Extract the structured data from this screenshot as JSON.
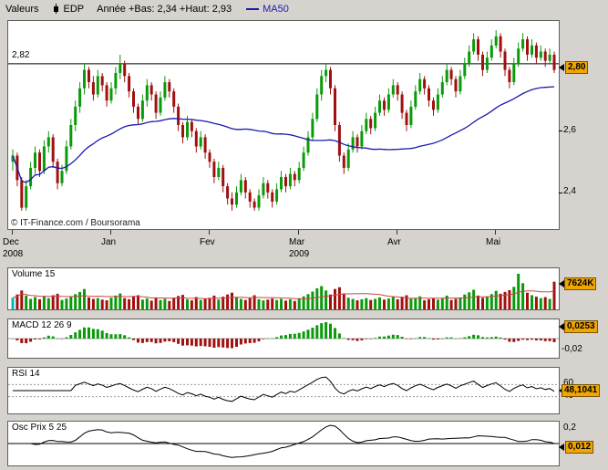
{
  "toolbar": {
    "values_label": "Valeurs",
    "symbol": "EDP",
    "range_label": "Année +Bas: 2,34 +Haut: 2,93",
    "ma_label": "MA50"
  },
  "main": {
    "ref_label": "2,82",
    "copyright": "© IT-Finance.com / Boursorama",
    "scale_26": "2,6",
    "scale_24": "2,4",
    "badge": "2,80"
  },
  "panels": {
    "volume": {
      "label": "Volume 15",
      "badge": "7624K"
    },
    "macd": {
      "label": "MACD 12 26 9",
      "badge": "0,0253",
      "axis_low": "-0,02"
    },
    "rsi": {
      "label": "RSI 14",
      "badge": "48,1041",
      "grid_hi": "60",
      "grid_lo": "40"
    },
    "osc": {
      "label": "Osc Prix 5 25",
      "badge": "0,012",
      "axis_hi": "0,2"
    }
  },
  "chart_data": {
    "type": "candlestick",
    "title": "EDP",
    "x_months": [
      "Dec",
      "Jan",
      "Fev",
      "Mar",
      "Avr",
      "Mai"
    ],
    "month_start_indices": [
      0,
      22,
      44,
      64,
      86,
      108
    ],
    "years": [
      {
        "label": "2008",
        "index": 0
      },
      {
        "label": "2009",
        "index": 64
      }
    ],
    "price_range": [
      2.28,
      2.96
    ],
    "price_ticks": [
      2.6,
      2.4
    ],
    "reference_line": 2.82,
    "last_price": 2.8,
    "year_low": 2.34,
    "year_high": 2.93,
    "overlays": [
      {
        "name": "MA50",
        "type": "sma",
        "period": 50
      }
    ],
    "indicators": {
      "volume": {
        "ma_period": 15,
        "last_label": "7624K"
      },
      "macd": {
        "fast": 12,
        "slow": 26,
        "signal": 9,
        "last": 0.0253,
        "axis_min": -0.02
      },
      "rsi": {
        "period": 14,
        "last": 48.1041,
        "gridlines": [
          60,
          40
        ]
      },
      "osc": {
        "fast": 5,
        "slow": 25,
        "last": 0.012,
        "axis_max": 0.2,
        "scale": 0.25
      }
    },
    "colors": {
      "up": "#0a9a0a",
      "down": "#a01010",
      "ma50": "#1a1aae",
      "volume_ma": "#cc4444",
      "first_volume_bar": "#00b8b8",
      "badge_bg": "#f0a500"
    },
    "candles": [
      [
        2.5,
        2.54,
        2.47,
        2.52,
        3200
      ],
      [
        2.52,
        2.53,
        2.42,
        2.44,
        4100
      ],
      [
        2.44,
        2.45,
        2.34,
        2.35,
        5200
      ],
      [
        2.35,
        2.44,
        2.34,
        2.42,
        3800
      ],
      [
        2.42,
        2.5,
        2.41,
        2.48,
        2900
      ],
      [
        2.48,
        2.55,
        2.46,
        2.53,
        3400
      ],
      [
        2.53,
        2.54,
        2.45,
        2.47,
        2800
      ],
      [
        2.47,
        2.57,
        2.46,
        2.55,
        3600
      ],
      [
        2.55,
        2.6,
        2.53,
        2.58,
        3100
      ],
      [
        2.58,
        2.59,
        2.48,
        2.5,
        3900
      ],
      [
        2.5,
        2.51,
        2.41,
        2.43,
        4300
      ],
      [
        2.43,
        2.49,
        2.42,
        2.47,
        2600
      ],
      [
        2.47,
        2.57,
        2.46,
        2.55,
        3000
      ],
      [
        2.55,
        2.64,
        2.54,
        2.62,
        3500
      ],
      [
        2.62,
        2.7,
        2.6,
        2.68,
        4200
      ],
      [
        2.68,
        2.76,
        2.66,
        2.74,
        4800
      ],
      [
        2.74,
        2.82,
        2.72,
        2.8,
        5600
      ],
      [
        2.8,
        2.81,
        2.74,
        2.76,
        3300
      ],
      [
        2.76,
        2.78,
        2.7,
        2.72,
        2900
      ],
      [
        2.72,
        2.8,
        2.71,
        2.78,
        3100
      ],
      [
        2.78,
        2.79,
        2.73,
        2.75,
        2700
      ],
      [
        2.75,
        2.76,
        2.68,
        2.7,
        2500
      ],
      [
        2.7,
        2.76,
        2.69,
        2.74,
        3200
      ],
      [
        2.74,
        2.81,
        2.72,
        2.79,
        3800
      ],
      [
        2.79,
        2.85,
        2.77,
        2.82,
        4400
      ],
      [
        2.82,
        2.83,
        2.76,
        2.78,
        3100
      ],
      [
        2.78,
        2.79,
        2.71,
        2.73,
        2800
      ],
      [
        2.73,
        2.74,
        2.66,
        2.68,
        3500
      ],
      [
        2.68,
        2.69,
        2.62,
        2.64,
        3900
      ],
      [
        2.64,
        2.72,
        2.63,
        2.7,
        2700
      ],
      [
        2.7,
        2.77,
        2.68,
        2.75,
        3000
      ],
      [
        2.75,
        2.76,
        2.7,
        2.72,
        2400
      ],
      [
        2.72,
        2.73,
        2.64,
        2.66,
        3300
      ],
      [
        2.66,
        2.73,
        2.65,
        2.71,
        2600
      ],
      [
        2.71,
        2.78,
        2.7,
        2.76,
        2900
      ],
      [
        2.76,
        2.77,
        2.71,
        2.73,
        2300
      ],
      [
        2.73,
        2.74,
        2.66,
        2.68,
        3100
      ],
      [
        2.68,
        2.69,
        2.6,
        2.62,
        3700
      ],
      [
        2.62,
        2.63,
        2.56,
        2.58,
        4000
      ],
      [
        2.58,
        2.65,
        2.57,
        2.63,
        2800
      ],
      [
        2.63,
        2.64,
        2.58,
        2.6,
        2500
      ],
      [
        2.6,
        2.61,
        2.53,
        2.55,
        3400
      ],
      [
        2.55,
        2.6,
        2.54,
        2.58,
        2600
      ],
      [
        2.58,
        2.59,
        2.51,
        2.53,
        3000
      ],
      [
        2.53,
        2.54,
        2.48,
        2.5,
        3200
      ],
      [
        2.5,
        2.51,
        2.43,
        2.45,
        3800
      ],
      [
        2.45,
        2.5,
        2.44,
        2.48,
        2700
      ],
      [
        2.48,
        2.49,
        2.4,
        2.42,
        3500
      ],
      [
        2.42,
        2.43,
        2.36,
        2.38,
        4100
      ],
      [
        2.38,
        2.4,
        2.34,
        2.36,
        4600
      ],
      [
        2.36,
        2.42,
        2.35,
        2.4,
        3300
      ],
      [
        2.4,
        2.46,
        2.39,
        2.44,
        2900
      ],
      [
        2.44,
        2.45,
        2.38,
        2.4,
        2600
      ],
      [
        2.4,
        2.41,
        2.35,
        2.37,
        3100
      ],
      [
        2.37,
        2.38,
        2.34,
        2.35,
        3900
      ],
      [
        2.35,
        2.41,
        2.34,
        2.39,
        2800
      ],
      [
        2.39,
        2.45,
        2.38,
        2.43,
        2500
      ],
      [
        2.43,
        2.44,
        2.38,
        2.4,
        2700
      ],
      [
        2.4,
        2.41,
        2.35,
        2.37,
        3000
      ],
      [
        2.37,
        2.43,
        2.36,
        2.41,
        2600
      ],
      [
        2.41,
        2.47,
        2.4,
        2.45,
        2900
      ],
      [
        2.45,
        2.46,
        2.4,
        2.42,
        2400
      ],
      [
        2.42,
        2.48,
        2.41,
        2.46,
        2800
      ],
      [
        2.46,
        2.47,
        2.42,
        2.44,
        2300
      ],
      [
        2.44,
        2.5,
        2.43,
        2.48,
        3100
      ],
      [
        2.48,
        2.55,
        2.47,
        2.53,
        3600
      ],
      [
        2.53,
        2.6,
        2.52,
        2.58,
        4200
      ],
      [
        2.58,
        2.66,
        2.57,
        2.64,
        4900
      ],
      [
        2.64,
        2.74,
        2.63,
        2.72,
        5800
      ],
      [
        2.72,
        2.8,
        2.7,
        2.78,
        6400
      ],
      [
        2.78,
        2.82,
        2.76,
        2.8,
        5200
      ],
      [
        2.8,
        2.81,
        2.72,
        2.74,
        4100
      ],
      [
        2.74,
        2.75,
        2.6,
        2.62,
        5600
      ],
      [
        2.62,
        2.63,
        2.5,
        2.52,
        6100
      ],
      [
        2.52,
        2.53,
        2.46,
        2.48,
        4400
      ],
      [
        2.48,
        2.56,
        2.47,
        2.54,
        3200
      ],
      [
        2.54,
        2.6,
        2.53,
        2.58,
        2900
      ],
      [
        2.58,
        2.59,
        2.53,
        2.55,
        2500
      ],
      [
        2.55,
        2.62,
        2.54,
        2.6,
        2800
      ],
      [
        2.6,
        2.66,
        2.59,
        2.64,
        3100
      ],
      [
        2.64,
        2.65,
        2.59,
        2.61,
        2600
      ],
      [
        2.61,
        2.68,
        2.6,
        2.66,
        2900
      ],
      [
        2.66,
        2.72,
        2.65,
        2.7,
        3300
      ],
      [
        2.7,
        2.71,
        2.65,
        2.67,
        2700
      ],
      [
        2.67,
        2.74,
        2.66,
        2.72,
        3000
      ],
      [
        2.72,
        2.77,
        2.71,
        2.75,
        3400
      ],
      [
        2.75,
        2.76,
        2.7,
        2.72,
        2800
      ],
      [
        2.72,
        2.73,
        2.64,
        2.66,
        3500
      ],
      [
        2.66,
        2.67,
        2.6,
        2.62,
        3900
      ],
      [
        2.62,
        2.7,
        2.61,
        2.68,
        2900
      ],
      [
        2.68,
        2.75,
        2.67,
        2.73,
        3200
      ],
      [
        2.73,
        2.79,
        2.72,
        2.77,
        3600
      ],
      [
        2.77,
        2.78,
        2.72,
        2.74,
        2500
      ],
      [
        2.74,
        2.75,
        2.68,
        2.7,
        2800
      ],
      [
        2.7,
        2.71,
        2.65,
        2.67,
        3100
      ],
      [
        2.67,
        2.74,
        2.66,
        2.72,
        2700
      ],
      [
        2.72,
        2.78,
        2.71,
        2.76,
        3000
      ],
      [
        2.76,
        2.82,
        2.75,
        2.8,
        3800
      ],
      [
        2.8,
        2.81,
        2.75,
        2.77,
        2600
      ],
      [
        2.77,
        2.78,
        2.71,
        2.73,
        2900
      ],
      [
        2.73,
        2.8,
        2.72,
        2.78,
        3300
      ],
      [
        2.78,
        2.84,
        2.77,
        2.82,
        4100
      ],
      [
        2.82,
        2.88,
        2.81,
        2.86,
        4700
      ],
      [
        2.86,
        2.92,
        2.85,
        2.9,
        5400
      ],
      [
        2.9,
        2.91,
        2.83,
        2.85,
        3800
      ],
      [
        2.85,
        2.86,
        2.78,
        2.8,
        3200
      ],
      [
        2.8,
        2.86,
        2.79,
        2.84,
        3600
      ],
      [
        2.84,
        2.9,
        2.83,
        2.88,
        4200
      ],
      [
        2.88,
        2.93,
        2.87,
        2.91,
        5100
      ],
      [
        2.91,
        2.92,
        2.84,
        2.86,
        4300
      ],
      [
        2.86,
        2.87,
        2.78,
        2.8,
        4800
      ],
      [
        2.8,
        2.81,
        2.74,
        2.76,
        5300
      ],
      [
        2.76,
        2.84,
        2.75,
        2.82,
        6200
      ],
      [
        2.82,
        2.89,
        2.81,
        2.87,
        9800
      ],
      [
        2.87,
        2.92,
        2.86,
        2.9,
        7200
      ],
      [
        2.9,
        2.91,
        2.83,
        2.85,
        4600
      ],
      [
        2.85,
        2.9,
        2.84,
        2.88,
        3900
      ],
      [
        2.88,
        2.89,
        2.82,
        2.84,
        3500
      ],
      [
        2.84,
        2.88,
        2.83,
        2.86,
        3100
      ],
      [
        2.86,
        2.87,
        2.81,
        2.83,
        3400
      ],
      [
        2.83,
        2.87,
        2.82,
        2.85,
        2900
      ],
      [
        2.85,
        2.86,
        2.79,
        2.8,
        7624
      ]
    ]
  }
}
